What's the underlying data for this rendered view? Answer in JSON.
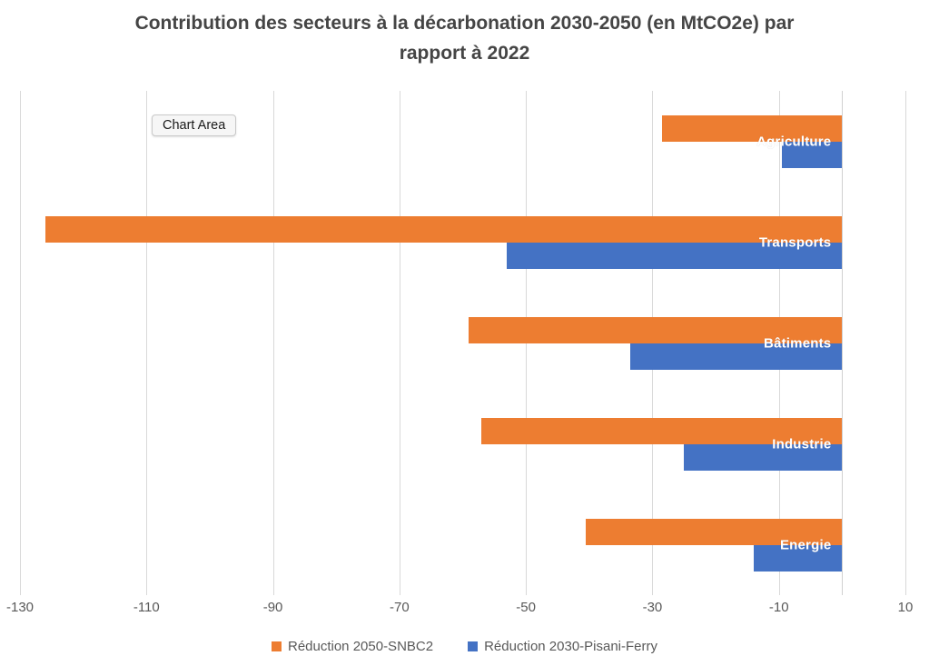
{
  "chart_data": {
    "type": "bar",
    "orientation": "horizontal",
    "title": "Contribution des secteurs à la décarbonation 2030-2050 (en MtCO2e) par rapport à 2022",
    "categories": [
      "Agriculture",
      "Transports",
      "Bâtiments",
      "Industrie",
      "Energie"
    ],
    "series": [
      {
        "name": "Réduction 2050-SNBC2",
        "color": "#ED7D31",
        "values": [
          -28.5,
          -126,
          -59,
          -57,
          -40.5
        ]
      },
      {
        "name": "Réduction 2030-Pisani-Ferry",
        "color": "#4472C4",
        "values": [
          -9.6,
          -53,
          -33.5,
          -25,
          -14
        ]
      }
    ],
    "xlim": [
      -130,
      10
    ],
    "x_ticks": [
      -130,
      -110,
      -90,
      -70,
      -50,
      -30,
      -10,
      10
    ],
    "grid": "vertical-light-gray",
    "legend_position": "bottom",
    "category_labels_inside_bars": true
  },
  "overlay": {
    "chart_area_label": "Chart Area"
  },
  "colors": {
    "series_orange": "#ED7D31",
    "series_blue": "#4472C4",
    "gridline": "#D9D9D9",
    "axis_text": "#595959",
    "title_text": "#454545",
    "category_label_text": "#FFFFFF",
    "background": "#FFFFFF"
  }
}
